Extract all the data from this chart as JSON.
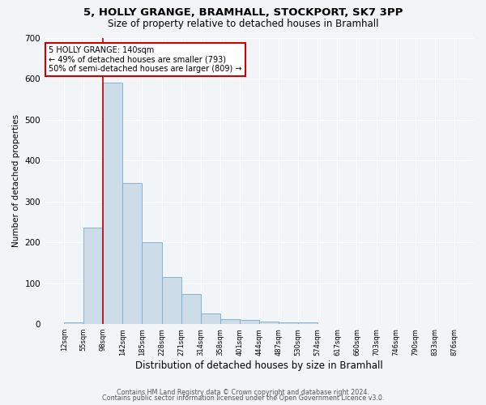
{
  "title_line1": "5, HOLLY GRANGE, BRAMHALL, STOCKPORT, SK7 3PP",
  "title_line2": "Size of property relative to detached houses in Bramhall",
  "xlabel": "Distribution of detached houses by size in Bramhall",
  "ylabel": "Number of detached properties",
  "bin_labels": [
    "12sqm",
    "55sqm",
    "98sqm",
    "142sqm",
    "185sqm",
    "228sqm",
    "271sqm",
    "314sqm",
    "358sqm",
    "401sqm",
    "444sqm",
    "487sqm",
    "530sqm",
    "574sqm",
    "617sqm",
    "660sqm",
    "703sqm",
    "746sqm",
    "790sqm",
    "833sqm",
    "876sqm"
  ],
  "bar_values": [
    5,
    235,
    590,
    345,
    200,
    115,
    73,
    25,
    12,
    10,
    7,
    5,
    5,
    0,
    0,
    0,
    0,
    0,
    0,
    0
  ],
  "bar_color": "#ccdce8",
  "bar_edge_color": "#7aaac8",
  "vline_bin_index": 2,
  "vline_color": "#bb0000",
  "annotation_line1": "5 HOLLY GRANGE: 140sqm",
  "annotation_line2": "← 49% of detached houses are smaller (793)",
  "annotation_line3": "50% of semi-detached houses are larger (809) →",
  "annotation_box_color": "#cc0000",
  "ylim": [
    0,
    700
  ],
  "yticks": [
    0,
    100,
    200,
    300,
    400,
    500,
    600,
    700
  ],
  "footer_line1": "Contains HM Land Registry data © Crown copyright and database right 2024.",
  "footer_line2": "Contains public sector information licensed under the Open Government Licence v3.0.",
  "bg_color": "#f2f5f8",
  "grid_color": "#ffffff",
  "title1_fontsize": 9.5,
  "title2_fontsize": 8.5,
  "xlabel_fontsize": 8.5,
  "ylabel_fontsize": 7.5,
  "xtick_fontsize": 6.0,
  "ytick_fontsize": 7.5,
  "footer_fontsize": 5.8
}
